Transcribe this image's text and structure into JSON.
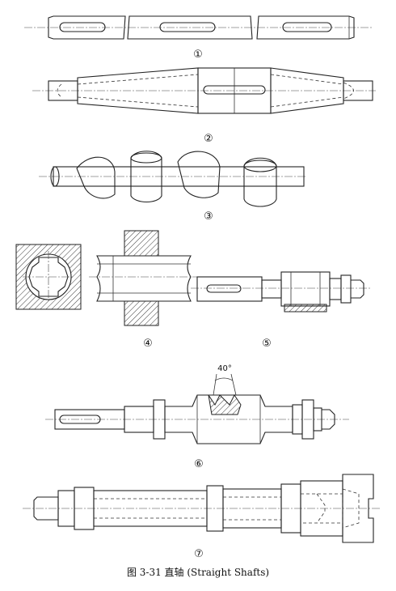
{
  "labels": {
    "d1": "①",
    "d2": "②",
    "d3": "③",
    "d4": "④",
    "d5": "⑤",
    "d6": "⑥",
    "d7": "⑦"
  },
  "angle_label": "40°",
  "caption": "图 3-31   直轴 (Straight Shafts)"
}
